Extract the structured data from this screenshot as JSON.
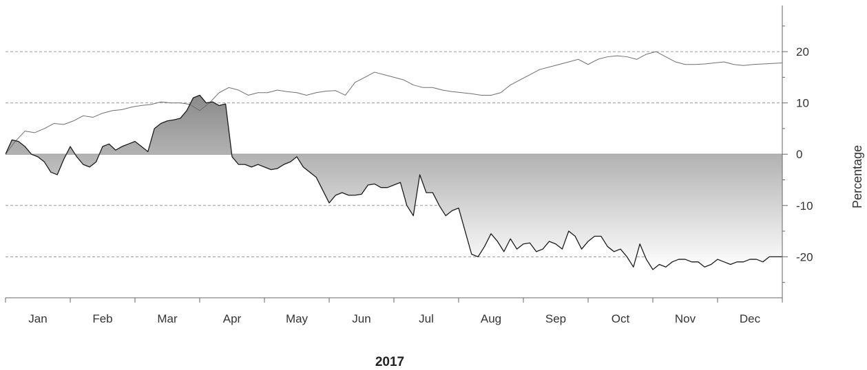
{
  "chart_data": {
    "type": "line",
    "title": "",
    "xlabel": "2017",
    "ylabel": "Percentage",
    "categories": [
      "Jan",
      "Feb",
      "Mar",
      "Apr",
      "May",
      "Jun",
      "Jul",
      "Aug",
      "Sep",
      "Oct",
      "Nov",
      "Dec"
    ],
    "ylim": [
      -28,
      29
    ],
    "yticks": [
      -20,
      -10,
      0,
      10,
      20
    ],
    "grid": "horizontal dashed",
    "legend": "none",
    "colors": {
      "series_1": "#6e6e6e",
      "series_2": "#1a1a1a",
      "gridline": "#999999",
      "zero_line": "#8c8c8c",
      "fill_dark": "#8a8a8a",
      "fill_light": "#ffffff"
    },
    "series": [
      {
        "x": [
          0,
          0.15,
          0.3,
          0.45,
          0.6,
          0.75,
          0.9,
          1.05,
          1.2,
          1.35,
          1.5,
          1.65,
          1.8,
          1.95,
          2.1,
          2.25,
          2.4,
          2.55,
          2.7,
          2.85,
          3.0,
          3.15,
          3.3,
          3.45,
          3.6,
          3.75,
          3.9,
          4.05,
          4.2,
          4.35,
          4.5,
          4.65,
          4.8,
          4.95,
          5.1,
          5.25,
          5.4,
          5.55,
          5.7,
          5.85,
          6.0,
          6.15,
          6.3,
          6.45,
          6.6,
          6.75,
          6.9,
          7.05,
          7.2,
          7.35,
          7.5,
          7.65,
          7.8,
          7.95,
          8.1,
          8.25,
          8.4,
          8.55,
          8.7,
          8.85,
          9.0,
          9.15,
          9.3,
          9.45,
          9.6,
          9.75,
          9.9,
          10.05,
          10.2,
          10.35,
          10.5,
          10.65,
          10.8,
          10.95,
          11.1,
          11.25,
          11.4,
          11.55,
          11.7,
          11.85,
          12.0
        ],
        "values": [
          0,
          2.5,
          4.5,
          4.2,
          5,
          6,
          5.8,
          6.5,
          7.5,
          7.2,
          8,
          8.5,
          8.7,
          9.2,
          9.5,
          9.7,
          10.2,
          10,
          10,
          9.7,
          8.5,
          10,
          12,
          13,
          12.5,
          11.5,
          12,
          12,
          12.5,
          12.2,
          12,
          11.5,
          12,
          12.3,
          12.4,
          11.5,
          14,
          15,
          16,
          15.5,
          15,
          14.5,
          13.5,
          13,
          13,
          12.5,
          12.2,
          12,
          11.8,
          11.5,
          11.5,
          12,
          13.5,
          14.5,
          15.5,
          16.5,
          17,
          17.5,
          18,
          18.5,
          17.5,
          18.5,
          19,
          19.2,
          19,
          18.5,
          19.5,
          20,
          19,
          18,
          17.5,
          17.5,
          17.6,
          17.8,
          18,
          17.5,
          17.3,
          17.5,
          17.6,
          17.7,
          17.8
        ]
      },
      {
        "x": [
          0,
          0.1,
          0.2,
          0.3,
          0.4,
          0.5,
          0.6,
          0.7,
          0.8,
          0.9,
          1.0,
          1.1,
          1.2,
          1.3,
          1.4,
          1.5,
          1.6,
          1.7,
          1.8,
          1.9,
          2.0,
          2.1,
          2.2,
          2.3,
          2.4,
          2.5,
          2.6,
          2.7,
          2.8,
          2.9,
          3.0,
          3.1,
          3.2,
          3.3,
          3.4,
          3.5,
          3.6,
          3.7,
          3.8,
          3.9,
          4.0,
          4.1,
          4.2,
          4.3,
          4.4,
          4.5,
          4.6,
          4.7,
          4.8,
          4.9,
          5.0,
          5.1,
          5.2,
          5.3,
          5.4,
          5.5,
          5.6,
          5.7,
          5.8,
          5.9,
          6.0,
          6.1,
          6.2,
          6.3,
          6.4,
          6.5,
          6.6,
          6.7,
          6.8,
          6.9,
          7.0,
          7.1,
          7.2,
          7.3,
          7.4,
          7.5,
          7.6,
          7.7,
          7.8,
          7.9,
          8.0,
          8.1,
          8.2,
          8.3,
          8.4,
          8.5,
          8.6,
          8.7,
          8.8,
          8.9,
          9.0,
          9.1,
          9.2,
          9.3,
          9.4,
          9.5,
          9.6,
          9.7,
          9.8,
          9.9,
          10.0,
          10.1,
          10.2,
          10.3,
          10.4,
          10.5,
          10.6,
          10.7,
          10.8,
          10.9,
          11.0,
          11.1,
          11.2,
          11.3,
          11.4,
          11.5,
          11.6,
          11.7,
          11.8,
          11.9,
          12.0
        ],
        "values": [
          0,
          2.8,
          2.5,
          1.5,
          0,
          -0.5,
          -1.5,
          -3.5,
          -4,
          -1,
          1.5,
          -0.5,
          -2,
          -2.5,
          -1.5,
          1.5,
          2,
          0.8,
          1.5,
          2,
          2.5,
          1.5,
          0.5,
          5,
          6,
          6.5,
          6.7,
          7,
          8.5,
          11,
          11.5,
          10,
          10.2,
          9.5,
          9.8,
          -0.5,
          -2,
          -2,
          -2.5,
          -2,
          -2.5,
          -3,
          -2.8,
          -2,
          -1.5,
          -0.5,
          -2.5,
          -3.5,
          -4.5,
          -7,
          -9.5,
          -8,
          -7.5,
          -8,
          -8,
          -7.8,
          -6,
          -5.8,
          -6.5,
          -6.5,
          -6,
          -5.5,
          -10,
          -12,
          -4,
          -7.5,
          -7.5,
          -10,
          -12,
          -11,
          -10.5,
          -15,
          -19.5,
          -20,
          -18,
          -15.5,
          -17,
          -19,
          -16.5,
          -18.5,
          -17.5,
          -17.3,
          -19,
          -18.5,
          -17,
          -17.5,
          -18.5,
          -15,
          -16,
          -18.5,
          -17,
          -16,
          -16,
          -18,
          -19,
          -18.5,
          -20,
          -22,
          -17.5,
          -20.5,
          -22.5,
          -21.5,
          -22,
          -21,
          -20.5,
          -20.5,
          -21,
          -21,
          -22,
          -21.5,
          -20.5,
          -21,
          -21.5,
          -21,
          -21,
          -20.5,
          -20.5,
          -21,
          -20,
          -20,
          -20
        ]
      }
    ]
  }
}
